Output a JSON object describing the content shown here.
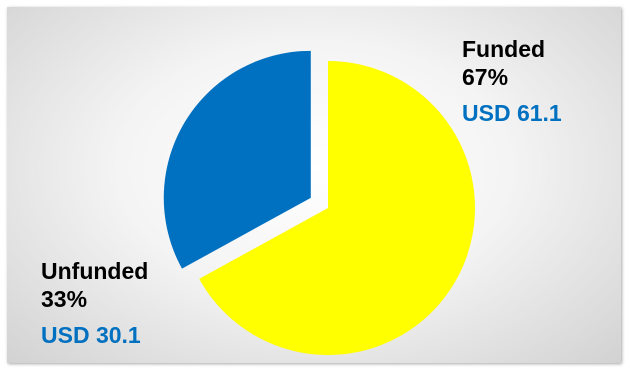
{
  "chart_data": {
    "type": "pie",
    "slices": [
      {
        "name": "Funded",
        "percent_label": "67%",
        "value_label": "USD 61.1",
        "value": 61.1,
        "percent": 67,
        "color": "#ffff00",
        "exploded": false
      },
      {
        "name": "Unfunded",
        "percent_label": "33%",
        "value_label": "USD 30.1",
        "value": 30.1,
        "percent": 33,
        "color": "#0070c0",
        "exploded": true
      }
    ],
    "value_label_color": "#0070c0",
    "legend": "none"
  }
}
